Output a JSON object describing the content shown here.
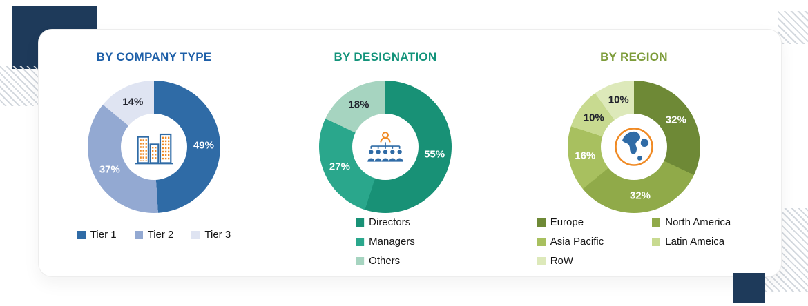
{
  "theme": {
    "page_background": "#ffffff",
    "card_background": "#ffffff",
    "navy": "#1e3a5a",
    "hatch": "#d3d8de",
    "icon_blue": "#2f6ba6",
    "icon_orange": "#f08a24",
    "legend_text": "#151515"
  },
  "chart_data": [
    {
      "type": "pie",
      "donut": true,
      "title": "BY COMPANY TYPE",
      "title_color": "#1d5fa8",
      "center_icon": "buildings-icon",
      "labels": [
        "Tier 1",
        "Tier 2",
        "Tier 3"
      ],
      "values": [
        49,
        37,
        14
      ],
      "value_labels": [
        "49%",
        "37%",
        "14%"
      ],
      "colors": [
        "#2f6ba6",
        "#93a9d2",
        "#dfe4f2"
      ],
      "value_label_colors": [
        "#ffffff",
        "#ffffff",
        "#20222c"
      ],
      "start_angle_deg": 0,
      "direction": "clockwise",
      "legend_layout": "horizontal",
      "legend_position": "bottom"
    },
    {
      "type": "pie",
      "donut": true,
      "title": "BY DESIGNATION",
      "title_color": "#12937a",
      "center_icon": "org-chart-icon",
      "labels": [
        "Directors",
        "Managers",
        "Others"
      ],
      "values": [
        55,
        27,
        18
      ],
      "value_labels": [
        "55%",
        "27%",
        "18%"
      ],
      "colors": [
        "#189176",
        "#2aa78c",
        "#a6d4c0"
      ],
      "value_label_colors": [
        "#ffffff",
        "#ffffff",
        "#20222c"
      ],
      "start_angle_deg": 0,
      "direction": "clockwise",
      "legend_layout": "vertical",
      "legend_position": "bottom"
    },
    {
      "type": "pie",
      "donut": true,
      "title": "BY REGION",
      "title_color": "#7d9c3a",
      "center_icon": "globe-icon",
      "labels": [
        "Europe",
        "North America",
        "Asia Pacific",
        "Latin Ameica",
        "RoW"
      ],
      "values": [
        32,
        32,
        16,
        10,
        10
      ],
      "value_labels": [
        "32%",
        "32%",
        "16%",
        "10%",
        "10%"
      ],
      "colors": [
        "#6e8936",
        "#90aa49",
        "#a8c05f",
        "#c8da90",
        "#dde9ba"
      ],
      "value_label_colors": [
        "#ffffff",
        "#ffffff",
        "#ffffff",
        "#20222c",
        "#20222c"
      ],
      "start_angle_deg": 0,
      "direction": "clockwise",
      "legend_layout": "two-column",
      "legend_columns": [
        [
          "Europe",
          "Asia Pacific",
          "RoW"
        ],
        [
          "North America",
          "Latin Ameica"
        ]
      ],
      "legend_position": "bottom"
    }
  ]
}
